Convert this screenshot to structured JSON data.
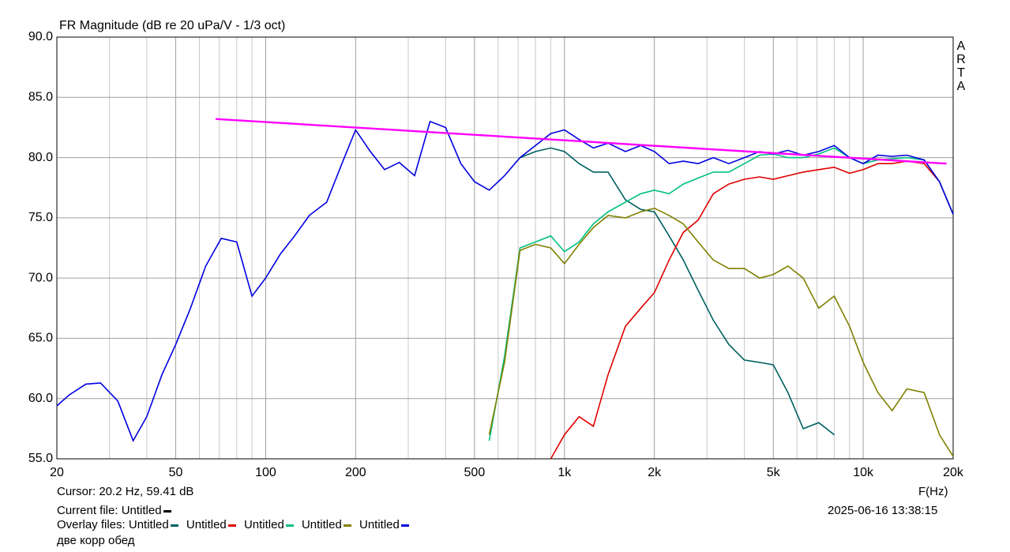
{
  "chart_data": {
    "type": "line",
    "title": "FR Magnitude (dB re 20 uPa/V - 1/3 oct)",
    "brand": "ARTA",
    "xlabel": "F(Hz)",
    "log_x": true,
    "grid": true,
    "xlim": [
      20,
      20000
    ],
    "ylim": [
      55,
      90
    ],
    "yticks": [
      {
        "value": 55,
        "label": "55.0"
      },
      {
        "value": 60,
        "label": "60.0"
      },
      {
        "value": 65,
        "label": "65.0"
      },
      {
        "value": 70,
        "label": "70.0"
      },
      {
        "value": 75,
        "label": "75.0"
      },
      {
        "value": 80,
        "label": "80.0"
      },
      {
        "value": 85,
        "label": "85.0"
      },
      {
        "value": 90,
        "label": "90.0"
      }
    ],
    "xticks": [
      20,
      50,
      100,
      200,
      500,
      {
        "value": 1000,
        "label": "1k"
      },
      {
        "value": 2000,
        "label": "2k"
      },
      {
        "value": 5000,
        "label": "5k"
      },
      {
        "value": 10000,
        "label": "10k"
      },
      {
        "value": 20000,
        "label": "20k"
      }
    ],
    "xminorticks": [
      30,
      40,
      60,
      70,
      80,
      90,
      300,
      400,
      600,
      700,
      800,
      900,
      3000,
      4000,
      6000,
      7000,
      8000,
      9000
    ],
    "x": [
      20,
      22,
      25,
      28,
      32,
      36,
      40,
      45,
      50,
      56,
      63,
      71,
      80,
      90,
      100,
      112,
      125,
      140,
      160,
      180,
      200,
      224,
      250,
      280,
      315,
      355,
      400,
      450,
      500,
      560,
      630,
      710,
      800,
      900,
      1000,
      1120,
      1250,
      1400,
      1600,
      1800,
      2000,
      2240,
      2500,
      2800,
      3150,
      3550,
      4000,
      4500,
      5000,
      5600,
      6300,
      7100,
      8000,
      9000,
      10000,
      11200,
      12500,
      14000,
      16000,
      18000,
      20000
    ],
    "series": [
      {
        "name": "Untitled",
        "color": "#006060",
        "values": [
          null,
          null,
          null,
          null,
          null,
          null,
          null,
          null,
          null,
          null,
          null,
          null,
          null,
          null,
          null,
          null,
          null,
          null,
          null,
          null,
          null,
          null,
          null,
          null,
          null,
          null,
          null,
          null,
          null,
          null,
          null,
          80.0,
          80.5,
          80.8,
          80.5,
          79.5,
          78.8,
          78.8,
          76.5,
          75.7,
          75.5,
          73.5,
          71.5,
          69.0,
          66.5,
          64.5,
          63.2,
          63.0,
          62.8,
          60.5,
          57.5,
          58.0,
          57.0,
          null,
          null,
          null,
          null,
          null,
          null,
          null,
          null
        ]
      },
      {
        "name": "Untitled",
        "color": "#e00000",
        "values": [
          null,
          null,
          null,
          null,
          null,
          null,
          null,
          null,
          null,
          null,
          null,
          null,
          null,
          null,
          null,
          null,
          null,
          null,
          null,
          null,
          null,
          null,
          null,
          null,
          null,
          null,
          null,
          null,
          null,
          null,
          null,
          null,
          null,
          55.0,
          57.0,
          58.5,
          57.7,
          62.0,
          66.0,
          67.5,
          68.8,
          71.5,
          73.8,
          74.8,
          77.0,
          77.8,
          78.2,
          78.4,
          78.2,
          78.5,
          78.8,
          79.0,
          79.2,
          78.7,
          79.0,
          79.5,
          79.5,
          79.7,
          79.5,
          78.0,
          75.3
        ]
      },
      {
        "name": "Untitled",
        "color": "#00c080",
        "values": [
          null,
          null,
          null,
          null,
          null,
          null,
          null,
          null,
          null,
          null,
          null,
          null,
          null,
          null,
          null,
          null,
          null,
          null,
          null,
          null,
          null,
          null,
          null,
          null,
          null,
          null,
          null,
          null,
          null,
          56.5,
          63.5,
          72.5,
          73.0,
          73.5,
          72.2,
          73.0,
          74.5,
          75.5,
          76.3,
          77.0,
          77.3,
          77.0,
          77.8,
          78.3,
          78.8,
          78.8,
          79.5,
          80.2,
          80.3,
          80.0,
          80.0,
          80.3,
          80.8,
          80.0,
          79.5,
          79.8,
          79.9,
          80.0,
          79.8,
          78.0,
          75.3
        ]
      },
      {
        "name": "Untitled",
        "color": "#808000",
        "values": [
          null,
          null,
          null,
          null,
          null,
          null,
          null,
          null,
          null,
          null,
          null,
          null,
          null,
          null,
          null,
          null,
          null,
          null,
          null,
          null,
          null,
          null,
          null,
          null,
          null,
          null,
          null,
          null,
          null,
          57.0,
          63.0,
          72.3,
          72.8,
          72.5,
          71.2,
          72.8,
          74.2,
          75.2,
          75.0,
          75.5,
          75.8,
          75.2,
          74.5,
          73.0,
          71.5,
          70.8,
          70.8,
          70.0,
          70.3,
          71.0,
          70.0,
          67.5,
          68.5,
          66.0,
          63.0,
          60.5,
          59.0,
          60.8,
          60.5,
          57.0,
          55.2
        ]
      },
      {
        "name": "Untitled",
        "color": "#0000e0",
        "values": [
          59.4,
          60.3,
          61.2,
          61.3,
          59.8,
          56.5,
          58.5,
          62.0,
          64.5,
          67.5,
          71.0,
          73.3,
          73.0,
          68.5,
          70.0,
          72.0,
          73.5,
          75.2,
          76.3,
          79.5,
          82.3,
          80.5,
          79.0,
          79.6,
          78.5,
          83.0,
          82.5,
          79.5,
          78.0,
          77.3,
          78.5,
          80.0,
          81.0,
          82.0,
          82.3,
          81.5,
          80.8,
          81.2,
          80.5,
          81.0,
          80.5,
          79.5,
          79.7,
          79.5,
          80.0,
          79.5,
          80.0,
          80.5,
          80.3,
          80.6,
          80.2,
          80.5,
          81.0,
          80.0,
          79.5,
          80.2,
          80.1,
          80.2,
          79.8,
          78.0,
          75.3
        ]
      },
      {
        "color": "#ff00ff",
        "x": [
          68,
          19000
        ],
        "values": [
          83.2,
          79.5
        ]
      }
    ],
    "cursor": "Cursor: 20.2 Hz, 59.41 dB",
    "current_file_label": "Current file:",
    "current_file": {
      "name": "Untitled",
      "color": "#000000"
    },
    "overlay_label": "Overlay files:",
    "note": "две корр обед",
    "timestamp": "2025-06-16  13:38:15"
  }
}
